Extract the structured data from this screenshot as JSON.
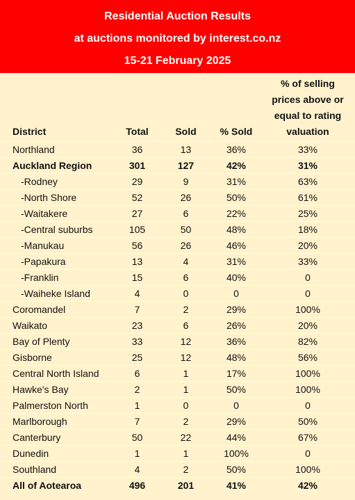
{
  "header": {
    "title": "Residential Auction Results",
    "subtitle": "at auctions monitored by interest.co.nz",
    "date": "15-21 February 2025"
  },
  "table": {
    "columns": [
      "District",
      "Total",
      "Sold",
      "% Sold",
      "% of selling prices above or equal to rating valuation"
    ],
    "rows": [
      [
        "Northland",
        "36",
        "13",
        "36%",
        "33%"
      ],
      [
        "Auckland Region",
        "301",
        "127",
        "42%",
        "31%"
      ],
      [
        "-Rodney",
        "29",
        "9",
        "31%",
        "63%"
      ],
      [
        "-North Shore",
        "52",
        "26",
        "50%",
        "61%"
      ],
      [
        "-Waitakere",
        "27",
        "6",
        "22%",
        "25%"
      ],
      [
        "-Central suburbs",
        "105",
        "50",
        "48%",
        "18%"
      ],
      [
        "-Manukau",
        "56",
        "26",
        "46%",
        "20%"
      ],
      [
        "-Papakura",
        "13",
        "4",
        "31%",
        "33%"
      ],
      [
        "-Franklin",
        "15",
        "6",
        "40%",
        "0"
      ],
      [
        "-Waiheke Island",
        "4",
        "0",
        "0",
        "0"
      ],
      [
        "Coromandel",
        "7",
        "2",
        "29%",
        "100%"
      ],
      [
        "Waikato",
        "23",
        "6",
        "26%",
        "20%"
      ],
      [
        "Bay of Plenty",
        "33",
        "12",
        "36%",
        "82%"
      ],
      [
        "Gisborne",
        "25",
        "12",
        "48%",
        "56%"
      ],
      [
        "Central North Island",
        "6",
        "1",
        "17%",
        "100%"
      ],
      [
        "Hawke's Bay",
        "2",
        "1",
        "50%",
        "100%"
      ],
      [
        "Palmerston North",
        "1",
        "0",
        "0",
        "0"
      ],
      [
        "Marlborough",
        "7",
        "2",
        "29%",
        "50%"
      ],
      [
        "Canterbury",
        "50",
        "22",
        "44%",
        "67%"
      ],
      [
        "Dunedin",
        "1",
        "1",
        "100%",
        "0"
      ],
      [
        "Southland",
        "4",
        "2",
        "50%",
        "100%"
      ],
      [
        "All of Aotearoa",
        "496",
        "201",
        "41%",
        "42%"
      ]
    ]
  }
}
